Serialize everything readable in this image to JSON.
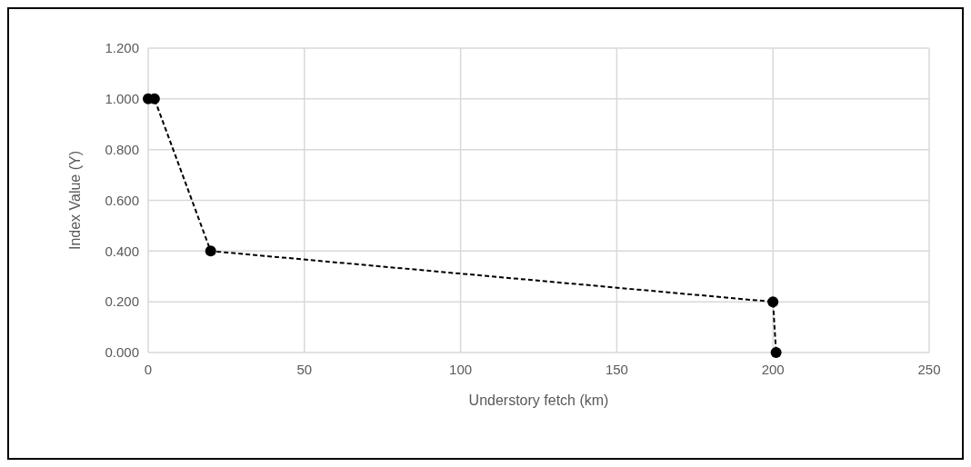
{
  "chart_data": {
    "type": "line",
    "xlabel": "Understory fetch (km)",
    "ylabel": "Index Value (Y)",
    "x": [
      0,
      2,
      20,
      200,
      201
    ],
    "values": [
      1,
      1,
      0.4,
      0.2,
      0
    ],
    "color": "#000000",
    "marker": "circle",
    "line_style": "dashed",
    "xlim": [
      0,
      250
    ],
    "xticks": [
      0,
      50,
      100,
      150,
      200,
      250
    ],
    "ylim": [
      0,
      1.2
    ],
    "yticks": [
      {
        "value": 0,
        "label": "0.000"
      },
      {
        "value": 0.2,
        "label": "0.200"
      },
      {
        "value": 0.4,
        "label": "0.400"
      },
      {
        "value": 0.6,
        "label": "0.600"
      },
      {
        "value": 0.8,
        "label": "0.800"
      },
      {
        "value": 1,
        "label": "1.000"
      },
      {
        "value": 1.2,
        "label": "1.200"
      }
    ],
    "grid": true
  }
}
